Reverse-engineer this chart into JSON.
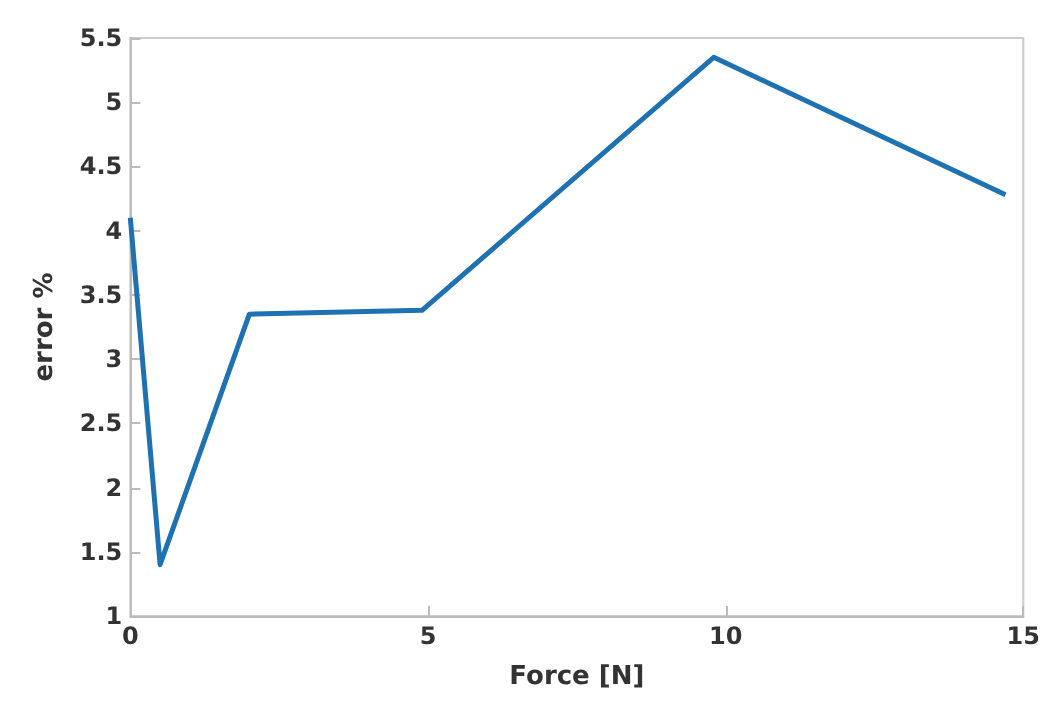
{
  "chart_data": {
    "type": "line",
    "xlabel": "Force [N]",
    "ylabel": "error %",
    "x": [
      0,
      0.5,
      2,
      4.9,
      9.8,
      14.7
    ],
    "series": [
      {
        "color": "#1f72b2",
        "values": [
          4.1,
          1.4,
          3.35,
          3.38,
          5.35,
          4.28
        ]
      }
    ],
    "xlim": [
      0,
      15
    ],
    "xticks": [
      0,
      5,
      10,
      15
    ],
    "ylim": [
      1,
      5.5
    ],
    "yticks": [
      1,
      1.5,
      2,
      2.5,
      3,
      3.5,
      4,
      4.5,
      5,
      5.5
    ],
    "grid": false,
    "marker": "none",
    "line_style": "solid"
  }
}
